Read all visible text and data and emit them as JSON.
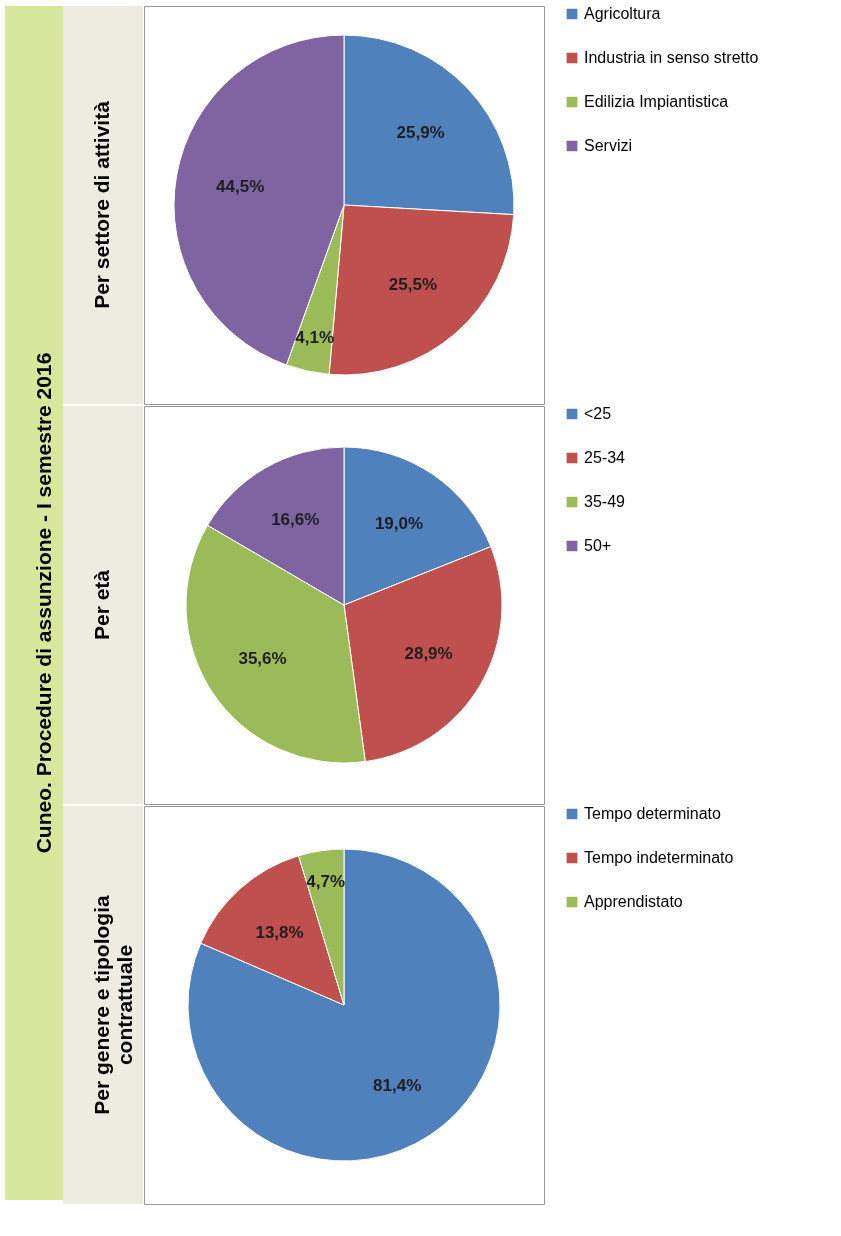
{
  "chart_data": [
    {
      "type": "pie",
      "title": "Per settore di attività",
      "annotations": [
        "Cuneo. Procedure di assunzione - I semestre 2016"
      ],
      "categories": [
        "Agricoltura",
        "Industria in senso stretto",
        "Edilizia Impiantistica",
        "Servizi"
      ],
      "values": [
        25.9,
        25.5,
        4.1,
        44.5
      ],
      "value_labels": [
        "25,9%",
        "25,5%",
        "4,1%",
        "44,5%"
      ],
      "colors": [
        "#4f81bd",
        "#c0504d",
        "#9bbb59",
        "#8064a2"
      ],
      "legend": "right"
    },
    {
      "type": "pie",
      "title": "Per età",
      "categories": [
        "<25",
        "25-34",
        "35-49",
        "50+"
      ],
      "values": [
        19.0,
        28.9,
        35.6,
        16.6
      ],
      "value_labels": [
        "19,0%",
        "28,9%",
        "35,6%",
        "16,6%"
      ],
      "colors": [
        "#4f81bd",
        "#c0504d",
        "#9bbb59",
        "#8064a2"
      ],
      "legend": "right"
    },
    {
      "type": "pie",
      "title": "Per genere e tipologia\ncontrattuale",
      "categories": [
        "Tempo determinato",
        "Tempo indeterminato",
        "Apprendistato"
      ],
      "values": [
        81.4,
        13.8,
        4.7
      ],
      "value_labels": [
        "81,4%",
        "13,8%",
        "4,7%"
      ],
      "colors": [
        "#4f81bd",
        "#c0504d",
        "#9bbb59"
      ],
      "legend": "right"
    }
  ]
}
